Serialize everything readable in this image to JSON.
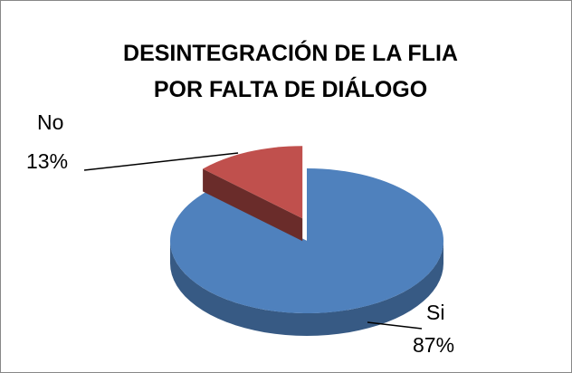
{
  "chart_data": {
    "type": "pie3d",
    "title": "DESINTEGRACIÓN DE LA FLIA POR FALTA DE DIÁLOGO",
    "categories": [
      "Si",
      "No"
    ],
    "values": [
      87,
      13
    ],
    "value_labels": [
      "87%",
      "13%"
    ],
    "colors": [
      "#4f81bd",
      "#c0504d"
    ]
  }
}
